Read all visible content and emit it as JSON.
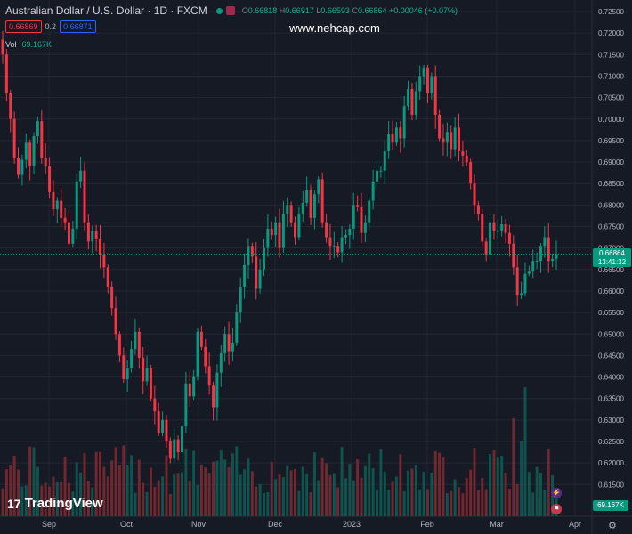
{
  "header": {
    "title": "Australian Dollar / U.S. Dollar · 1D · FXCM",
    "ohlc": {
      "o": "O",
      "o_val": "0.66818",
      "h": "H",
      "h_val": "0.66917",
      "l": "L",
      "l_val": "0.66593",
      "c": "C",
      "c_val": "0.66864",
      "chg": "+0.00046 (+0.07%)"
    },
    "bid": "0.66869",
    "spread": "0.2",
    "ask": "0.66871"
  },
  "volume_label": {
    "name": "Vol",
    "value": "69.167K"
  },
  "watermark": "www.nehcap.com",
  "logo": "TradingView",
  "price_label": {
    "price": "0.66864",
    "countdown": "13:41:32"
  },
  "volume_axis_label": "69.167K",
  "colors": {
    "up": "#089981",
    "down": "#f23645",
    "bg": "#161a25",
    "grid": "#232733"
  },
  "chart_data": {
    "type": "candlestick",
    "symbol": "AUDUSD",
    "y_axis_ticks": [
      "0.72500",
      "0.72000",
      "0.71500",
      "0.71000",
      "0.70500",
      "0.70000",
      "0.69500",
      "0.69000",
      "0.68500",
      "0.68000",
      "0.67500",
      "0.67000",
      "0.66500",
      "0.66000",
      "0.65500",
      "0.65000",
      "0.64500",
      "0.64000",
      "0.63500",
      "0.63000",
      "0.62500",
      "0.62000",
      "0.61500"
    ],
    "ylim": [
      0.6125,
      0.7265
    ],
    "x_axis_ticks": [
      "Sep",
      "Oct",
      "Nov",
      "Dec",
      "2023",
      "Feb",
      "Mar",
      "Apr"
    ],
    "close": [
      0.715,
      0.706,
      0.7,
      0.691,
      0.687,
      0.6905,
      0.6945,
      0.689,
      0.696,
      0.6995,
      0.691,
      0.689,
      0.683,
      0.679,
      0.681,
      0.677,
      0.676,
      0.671,
      0.6745,
      0.6855,
      0.688,
      0.676,
      0.6715,
      0.674,
      0.672,
      0.6685,
      0.6655,
      0.661,
      0.656,
      0.65,
      0.645,
      0.6395,
      0.642,
      0.6465,
      0.6505,
      0.6445,
      0.639,
      0.642,
      0.635,
      0.632,
      0.627,
      0.63,
      0.625,
      0.621,
      0.6255,
      0.6225,
      0.6285,
      0.6385,
      0.6355,
      0.64,
      0.6505,
      0.647,
      0.6425,
      0.638,
      0.633,
      0.641,
      0.6455,
      0.65,
      0.646,
      0.648,
      0.655,
      0.661,
      0.666,
      0.6705,
      0.668,
      0.6605,
      0.665,
      0.67,
      0.6745,
      0.673,
      0.676,
      0.67,
      0.678,
      0.68,
      0.676,
      0.6725,
      0.678,
      0.6805,
      0.6835,
      0.677,
      0.6825,
      0.686,
      0.676,
      0.6725,
      0.6705,
      0.6705,
      0.669,
      0.6725,
      0.673,
      0.6745,
      0.68,
      0.6795,
      0.6735,
      0.676,
      0.681,
      0.6855,
      0.688,
      0.688,
      0.6925,
      0.6965,
      0.6945,
      0.698,
      0.6955,
      0.703,
      0.707,
      0.701,
      0.7065,
      0.71,
      0.712,
      0.706,
      0.71,
      0.701,
      0.6955,
      0.6945,
      0.697,
      0.693,
      0.698,
      0.6925,
      0.6915,
      0.69,
      0.685,
      0.68,
      0.678,
      0.6715,
      0.6685,
      0.676,
      0.674,
      0.674,
      0.6755,
      0.6735,
      0.671,
      0.6655,
      0.659,
      0.6595,
      0.664,
      0.6645,
      0.667,
      0.667,
      0.6705,
      0.6725,
      0.667,
      0.6675,
      0.6686
    ]
  }
}
